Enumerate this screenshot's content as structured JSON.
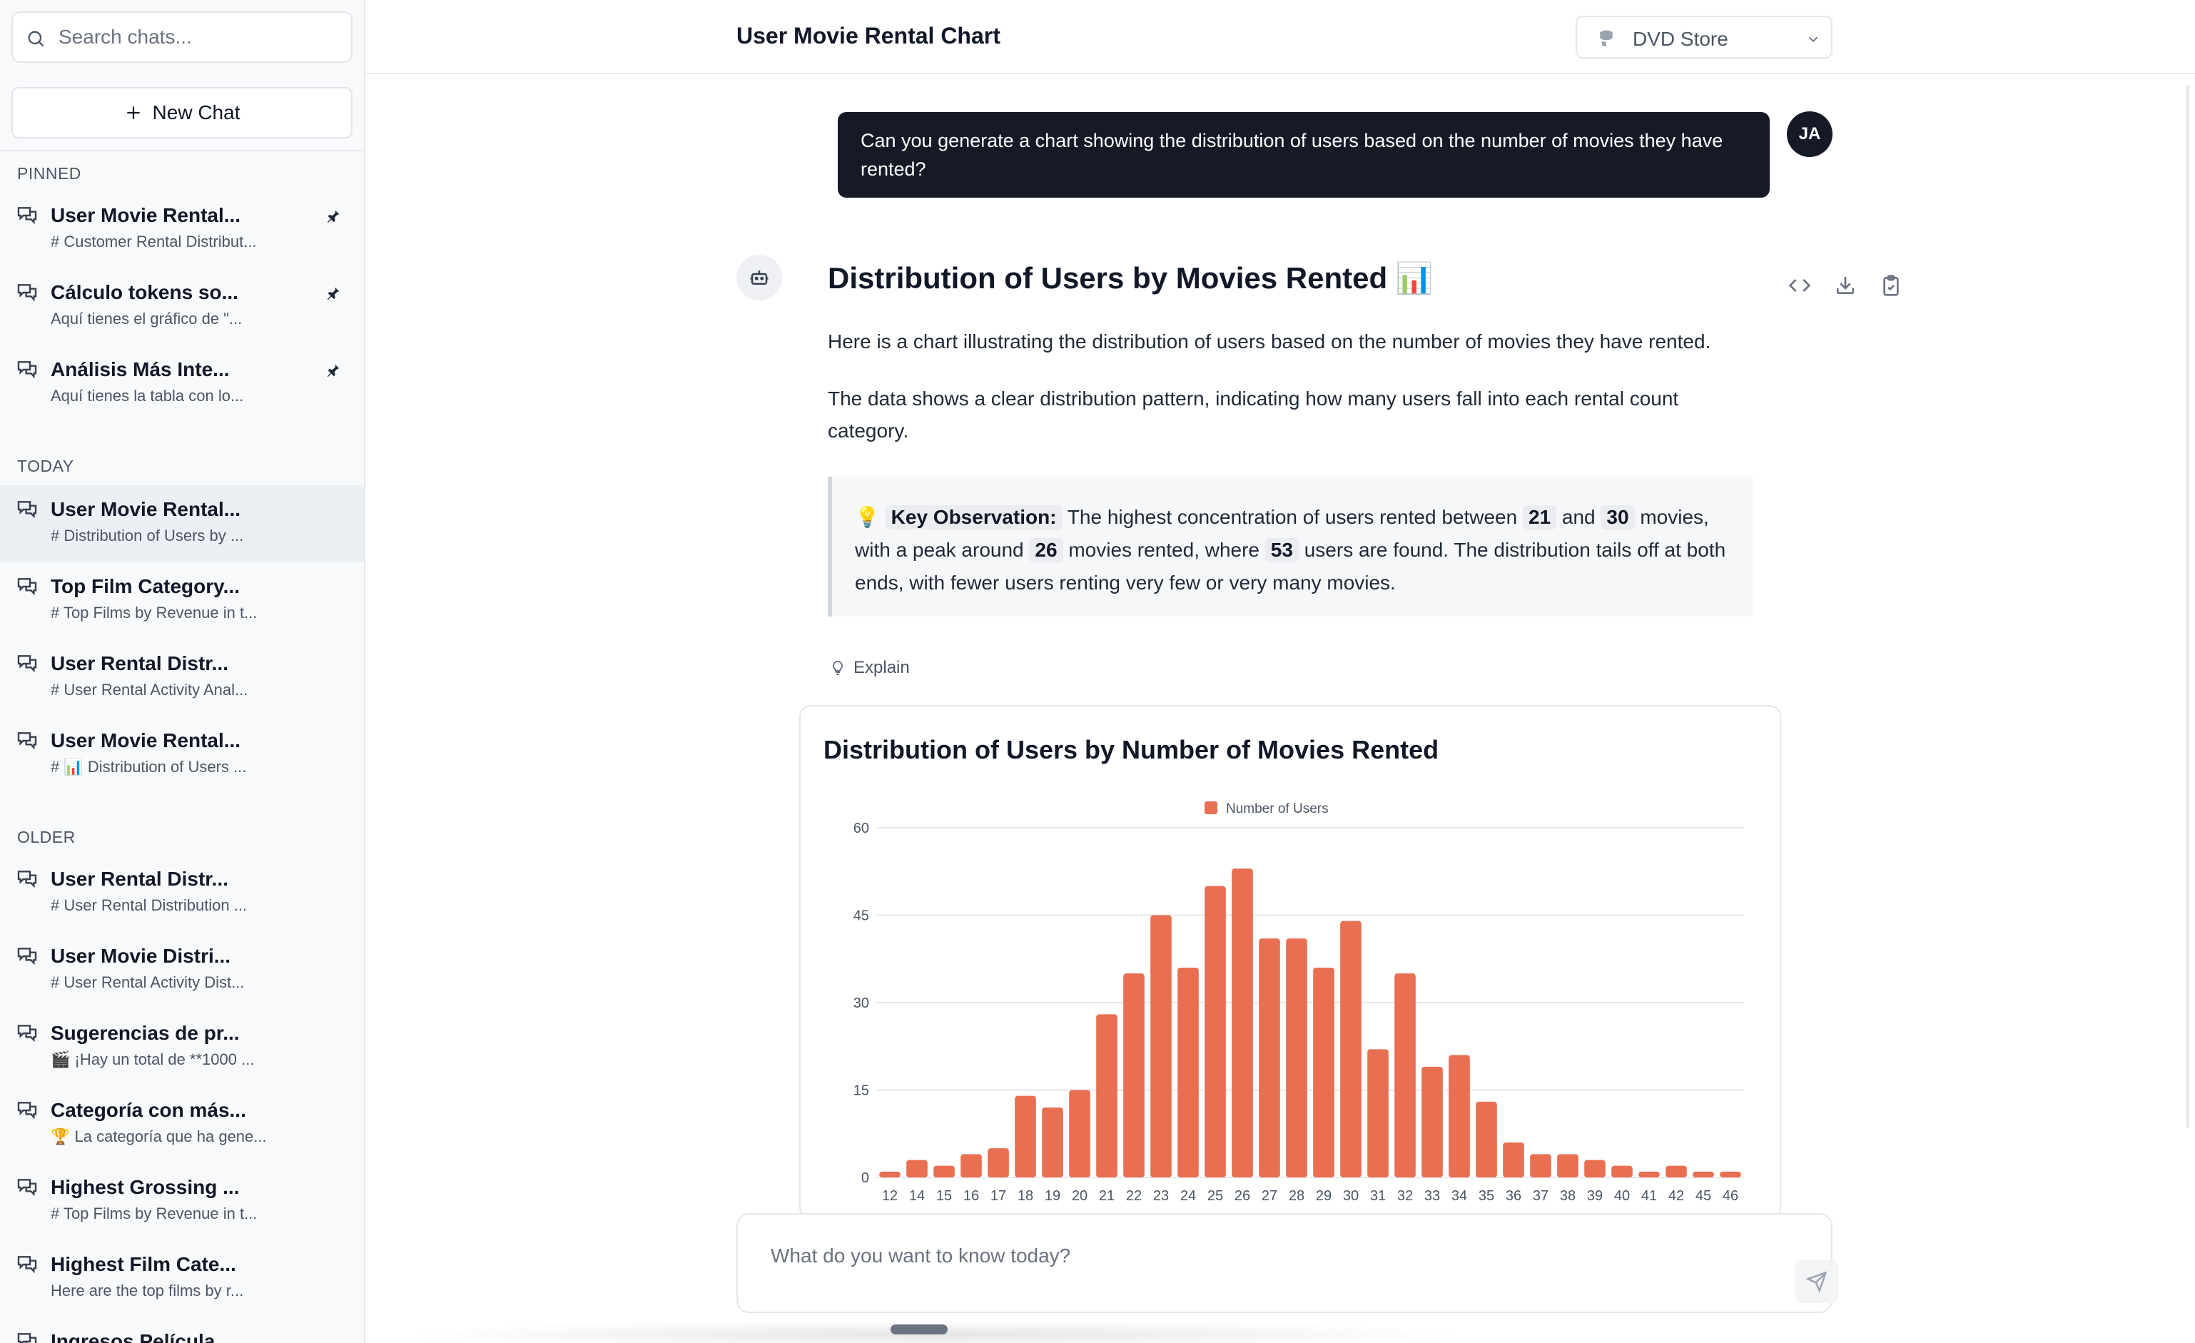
{
  "sidebar": {
    "search_placeholder": "Search chats...",
    "new_chat_label": "New Chat",
    "sections": {
      "pinned": "PINNED",
      "today": "TODAY",
      "older": "OLDER"
    },
    "pinned": [
      {
        "title": "User Movie Rental...",
        "subtitle": "# Customer Rental Distribut..."
      },
      {
        "title": "Cálculo tokens so...",
        "subtitle": "Aquí tienes el gráfico de \"..."
      },
      {
        "title": "Análisis Más Inte...",
        "subtitle": "Aquí tienes la tabla con lo..."
      }
    ],
    "today": [
      {
        "title": "User Movie Rental...",
        "subtitle": "# Distribution of Users by ..."
      },
      {
        "title": "Top Film Category...",
        "subtitle": "# Top Films by Revenue in t..."
      },
      {
        "title": "User Rental Distr...",
        "subtitle": "# User Rental Activity Anal..."
      },
      {
        "title": "User Movie Rental...",
        "subtitle": "# 📊 Distribution of Users ..."
      }
    ],
    "older": [
      {
        "title": "User Rental Distr...",
        "subtitle": "# User Rental Distribution ..."
      },
      {
        "title": "User Movie Distri...",
        "subtitle": "# User Rental Activity Dist..."
      },
      {
        "title": "Sugerencias de pr...",
        "subtitle": "🎬 ¡Hay un total de **1000 ..."
      },
      {
        "title": "Categoría con más...",
        "subtitle": "🏆 La categoría que ha gene..."
      },
      {
        "title": "Highest Grossing ...",
        "subtitle": "# Top Films by Revenue in t..."
      },
      {
        "title": "Highest Film Cate...",
        "subtitle": "Here are the top films by r..."
      },
      {
        "title": "Ingresos Película...",
        "subtitle": ""
      }
    ]
  },
  "header": {
    "title": "User Movie Rental Chart",
    "database": "DVD Store"
  },
  "conversation": {
    "user_initials": "JA",
    "user_message": "Can you generate a chart showing the distribution of users based on the number of movies they have rented?",
    "response_title": "Distribution of Users by Movies Rented 📊",
    "paragraph1": "Here is a chart illustrating the distribution of users based on the number of movies they have rented.",
    "paragraph2": "The data shows a clear distribution pattern, indicating how many users fall into each rental count category.",
    "callout": {
      "emoji": "💡",
      "label": "Key Observation:",
      "t1": " The highest concentration of users rented between ",
      "v1": "21",
      "t2": " and ",
      "v2": "30",
      "t3": " movies, with a peak around ",
      "v3": "26",
      "t4": " movies rented, where ",
      "v4": "53",
      "t5": " users are found. The distribution tails off at both ends, with fewer users renting very few or very many movies."
    },
    "explain_label": "Explain"
  },
  "chart_data": {
    "type": "bar",
    "title": "Distribution of Users by Number of Movies Rented",
    "legend": "Number of Users",
    "legend_position": "top-center",
    "color": "#e86f51",
    "categories": [
      "12",
      "14",
      "15",
      "16",
      "17",
      "18",
      "19",
      "20",
      "21",
      "22",
      "23",
      "24",
      "25",
      "26",
      "27",
      "28",
      "29",
      "30",
      "31",
      "32",
      "33",
      "34",
      "35",
      "36",
      "37",
      "38",
      "39",
      "40",
      "41",
      "42",
      "45",
      "46"
    ],
    "values": [
      1,
      3,
      2,
      4,
      5,
      14,
      12,
      15,
      28,
      35,
      45,
      36,
      50,
      53,
      41,
      41,
      36,
      44,
      22,
      35,
      19,
      21,
      13,
      6,
      4,
      4,
      3,
      2,
      1,
      2,
      1,
      1
    ],
    "yticks": [
      0,
      15,
      30,
      45,
      60
    ],
    "ylim": [
      0,
      60
    ],
    "xlabel": "",
    "ylabel": "",
    "grid": true
  },
  "input": {
    "placeholder": "What do you want to know today?"
  }
}
